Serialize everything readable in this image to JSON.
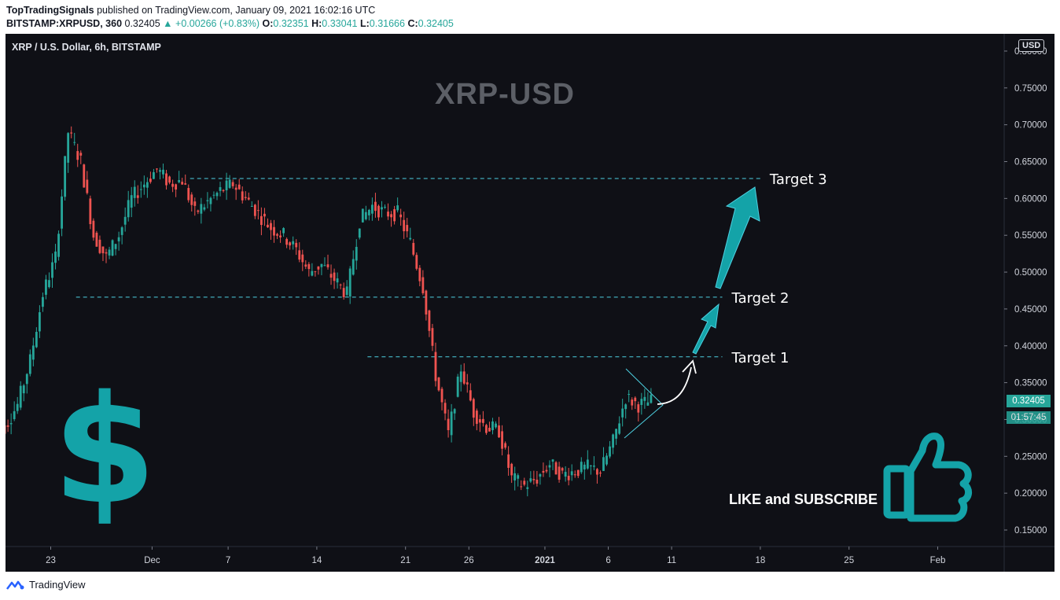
{
  "header": {
    "author": "TopTradingSignals",
    "published": "published on TradingView.com, January 09, 2021 16:02:16 UTC"
  },
  "ohlc": {
    "symbol": "BITSTAMP:XRPUSD, 360",
    "last": "0.32405",
    "change": "▲ +0.00266 (+0.83%)",
    "o_label": "O:",
    "o": "0.32351",
    "h_label": "H:",
    "h": "0.33041",
    "l_label": "L:",
    "l": "0.31666",
    "c_label": "C:",
    "c": "0.32405"
  },
  "chart_title": "XRP / U.S. Dollar, 6h, BITSTAMP",
  "watermark": "XRP-USD",
  "currency": "USD",
  "price_tag": "0.32405",
  "countdown": "01:57:45",
  "promo": "LIKE and SUBSCRIBE",
  "footer": {
    "brand": "TradingView"
  },
  "colors": {
    "up": "#26a69a",
    "down": "#ef5350",
    "dashed": "#4dd0e1",
    "arrow": "#14a3a8",
    "background": "#0f1016"
  },
  "chart_data": {
    "type": "candlestick",
    "title": "XRP / U.S. Dollar, 6h, BITSTAMP",
    "y_axis": {
      "ticks": [
        "0.15000",
        "0.20000",
        "0.25000",
        "0.30000",
        "0.35000",
        "0.40000",
        "0.45000",
        "0.50000",
        "0.55000",
        "0.60000",
        "0.65000",
        "0.70000",
        "0.75000",
        "0.80000"
      ],
      "range": [
        0.13,
        0.8
      ],
      "position": "right"
    },
    "x_axis": {
      "ticks": [
        {
          "label": "23",
          "date": "2020-11-23"
        },
        {
          "label": "Dec",
          "date": "2020-12-01"
        },
        {
          "label": "7",
          "date": "2020-12-07"
        },
        {
          "label": "14",
          "date": "2020-12-14"
        },
        {
          "label": "21",
          "date": "2020-12-21"
        },
        {
          "label": "26",
          "date": "2020-12-26"
        },
        {
          "label": "2021",
          "date": "2021-01-01",
          "bold": true
        },
        {
          "label": "6",
          "date": "2021-01-06"
        },
        {
          "label": "11",
          "date": "2021-01-11"
        },
        {
          "label": "18",
          "date": "2021-01-18"
        },
        {
          "label": "25",
          "date": "2021-01-25"
        },
        {
          "label": "Feb",
          "date": "2021-02-01"
        }
      ],
      "range": [
        "2020-11-19",
        "2021-02-06"
      ]
    },
    "daily_closes": [
      {
        "date": "2020-11-19",
        "close": 0.29
      },
      {
        "date": "2020-11-20",
        "close": 0.32
      },
      {
        "date": "2020-11-21",
        "close": 0.38
      },
      {
        "date": "2020-11-22",
        "close": 0.47
      },
      {
        "date": "2020-11-23",
        "close": 0.52
      },
      {
        "date": "2020-11-24",
        "close": 0.69
      },
      {
        "date": "2020-11-25",
        "close": 0.65
      },
      {
        "date": "2020-11-26",
        "close": 0.55
      },
      {
        "date": "2020-11-27",
        "close": 0.52
      },
      {
        "date": "2020-11-28",
        "close": 0.55
      },
      {
        "date": "2020-11-29",
        "close": 0.6
      },
      {
        "date": "2020-11-30",
        "close": 0.62
      },
      {
        "date": "2020-12-01",
        "close": 0.64
      },
      {
        "date": "2020-12-02",
        "close": 0.62
      },
      {
        "date": "2020-12-03",
        "close": 0.625
      },
      {
        "date": "2020-12-04",
        "close": 0.58
      },
      {
        "date": "2020-12-05",
        "close": 0.595
      },
      {
        "date": "2020-12-06",
        "close": 0.61
      },
      {
        "date": "2020-12-07",
        "close": 0.62
      },
      {
        "date": "2020-12-08",
        "close": 0.6
      },
      {
        "date": "2020-12-09",
        "close": 0.58
      },
      {
        "date": "2020-12-10",
        "close": 0.56
      },
      {
        "date": "2020-12-11",
        "close": 0.55
      },
      {
        "date": "2020-12-12",
        "close": 0.53
      },
      {
        "date": "2020-12-13",
        "close": 0.5
      },
      {
        "date": "2020-12-14",
        "close": 0.51
      },
      {
        "date": "2020-12-15",
        "close": 0.49
      },
      {
        "date": "2020-12-16",
        "close": 0.47
      },
      {
        "date": "2020-12-17",
        "close": 0.57
      },
      {
        "date": "2020-12-18",
        "close": 0.59
      },
      {
        "date": "2020-12-19",
        "close": 0.58
      },
      {
        "date": "2020-12-20",
        "close": 0.58
      },
      {
        "date": "2020-12-21",
        "close": 0.54
      },
      {
        "date": "2020-12-22",
        "close": 0.48
      },
      {
        "date": "2020-12-23",
        "close": 0.36
      },
      {
        "date": "2020-12-24",
        "close": 0.28
      },
      {
        "date": "2020-12-25",
        "close": 0.37
      },
      {
        "date": "2020-12-26",
        "close": 0.31
      },
      {
        "date": "2020-12-27",
        "close": 0.29
      },
      {
        "date": "2020-12-28",
        "close": 0.285
      },
      {
        "date": "2020-12-29",
        "close": 0.22
      },
      {
        "date": "2020-12-30",
        "close": 0.21
      },
      {
        "date": "2020-12-31",
        "close": 0.22
      },
      {
        "date": "2021-01-01",
        "close": 0.24
      },
      {
        "date": "2021-01-02",
        "close": 0.225
      },
      {
        "date": "2021-01-03",
        "close": 0.23
      },
      {
        "date": "2021-01-04",
        "close": 0.235
      },
      {
        "date": "2021-01-05",
        "close": 0.23
      },
      {
        "date": "2021-01-06",
        "close": 0.27
      },
      {
        "date": "2021-01-07",
        "close": 0.33
      },
      {
        "date": "2021-01-08",
        "close": 0.32
      },
      {
        "date": "2021-01-09",
        "close": 0.324
      }
    ],
    "levels": [
      {
        "name": "Target 1",
        "price": 0.385
      },
      {
        "name": "Target 2",
        "price": 0.466
      },
      {
        "name": "Target 3",
        "price": 0.627
      }
    ]
  }
}
